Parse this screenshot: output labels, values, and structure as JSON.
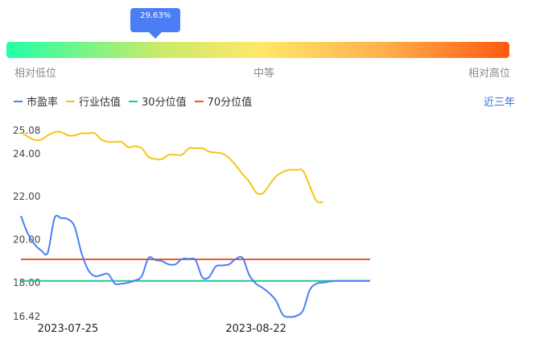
{
  "gauge": {
    "percentile": 29.63,
    "bubble_label": "29.63%",
    "labels": {
      "low": "相对低位",
      "mid": "中等",
      "high": "相对高位"
    },
    "colors": [
      "#22ffa8",
      "#c8ea6a",
      "#ffe86a",
      "#ffb04a",
      "#ff5a10"
    ]
  },
  "legend": [
    {
      "name": "市盈率",
      "color": "#4b7ef5"
    },
    {
      "name": "行业估值",
      "color": "#f5c518"
    },
    {
      "name": "30分位值",
      "color": "#1fc990"
    },
    {
      "name": "70分位值",
      "color": "#f2581f"
    }
  ],
  "range_link": "近三年",
  "chart_data": {
    "type": "line",
    "ylim": [
      16.42,
      25.08
    ],
    "y_ticks": [
      "25.08",
      "24.00",
      "22.00",
      "20.00",
      "18.00",
      "16.42"
    ],
    "y_tick_values": [
      25.08,
      24.0,
      22.0,
      20.0,
      18.0,
      16.42
    ],
    "x_range": [
      "2023-07-18",
      "2023-09-08"
    ],
    "x_ticks": [
      "2023-07-25",
      "2023-08-22"
    ],
    "series": [
      {
        "name": "市盈率",
        "color": "#4b7ef5",
        "x": [
          "2023-07-18",
          "2023-07-19",
          "2023-07-20",
          "2023-07-21",
          "2023-07-22",
          "2023-07-23",
          "2023-07-24",
          "2023-07-25",
          "2023-07-26",
          "2023-07-27",
          "2023-07-28",
          "2023-07-29",
          "2023-07-30",
          "2023-07-31",
          "2023-08-01",
          "2023-08-02",
          "2023-08-03",
          "2023-08-04",
          "2023-08-05",
          "2023-08-06",
          "2023-08-07",
          "2023-08-08",
          "2023-08-09",
          "2023-08-10",
          "2023-08-11",
          "2023-08-12",
          "2023-08-13",
          "2023-08-14",
          "2023-08-15",
          "2023-08-16",
          "2023-08-17",
          "2023-08-18",
          "2023-08-19",
          "2023-08-20",
          "2023-08-21",
          "2023-08-22",
          "2023-08-23",
          "2023-08-24",
          "2023-08-25",
          "2023-08-26",
          "2023-08-27",
          "2023-08-28",
          "2023-08-29",
          "2023-08-30",
          "2023-08-31",
          "2023-09-01",
          "2023-09-02",
          "2023-09-03",
          "2023-09-04",
          "2023-09-05",
          "2023-09-06",
          "2023-09-07",
          "2023-09-08"
        ],
        "values": [
          21.1,
          20.3,
          19.8,
          19.5,
          19.4,
          21.0,
          21.0,
          20.95,
          20.6,
          19.4,
          18.6,
          18.3,
          18.35,
          18.4,
          17.95,
          17.95,
          18.0,
          18.1,
          18.3,
          19.15,
          19.05,
          19.0,
          18.85,
          18.85,
          19.1,
          19.1,
          19.05,
          18.25,
          18.25,
          18.75,
          18.8,
          18.85,
          19.1,
          19.15,
          18.35,
          17.95,
          17.75,
          17.5,
          17.15,
          16.5,
          16.4,
          16.45,
          16.7,
          17.65,
          17.95,
          18.0,
          18.05,
          18.08,
          18.08,
          18.08,
          18.08,
          18.08,
          18.08
        ]
      },
      {
        "name": "行业估值",
        "color": "#f5c518",
        "x": [
          "2023-07-18",
          "2023-07-19",
          "2023-07-20",
          "2023-07-21",
          "2023-07-22",
          "2023-07-23",
          "2023-07-24",
          "2023-07-25",
          "2023-07-26",
          "2023-07-27",
          "2023-07-28",
          "2023-07-29",
          "2023-07-30",
          "2023-07-31",
          "2023-08-01",
          "2023-08-02",
          "2023-08-03",
          "2023-08-04",
          "2023-08-05",
          "2023-08-06",
          "2023-08-07",
          "2023-08-08",
          "2023-08-09",
          "2023-08-10",
          "2023-08-11",
          "2023-08-12",
          "2023-08-13",
          "2023-08-14",
          "2023-08-15",
          "2023-08-16",
          "2023-08-17",
          "2023-08-18",
          "2023-08-19",
          "2023-08-20",
          "2023-08-21",
          "2023-08-22",
          "2023-08-23",
          "2023-08-24",
          "2023-08-25",
          "2023-08-26",
          "2023-08-27",
          "2023-08-28",
          "2023-08-29",
          "2023-08-30",
          "2023-08-31",
          "2023-09-01"
        ],
        "values": [
          25.0,
          24.8,
          24.65,
          24.65,
          24.85,
          25.0,
          25.0,
          24.85,
          24.85,
          24.95,
          24.95,
          24.95,
          24.65,
          24.55,
          24.55,
          24.55,
          24.3,
          24.35,
          24.25,
          23.85,
          23.75,
          23.75,
          23.95,
          23.95,
          23.95,
          24.25,
          24.25,
          24.25,
          24.1,
          24.05,
          24.0,
          23.8,
          23.45,
          23.05,
          22.7,
          22.2,
          22.15,
          22.55,
          22.95,
          23.15,
          23.25,
          23.25,
          23.2,
          22.5,
          21.8,
          21.75
        ]
      },
      {
        "name": "30分位值",
        "color": "#1fc990",
        "x": [
          "2023-07-18",
          "2023-09-08"
        ],
        "values": [
          18.08,
          18.08
        ]
      },
      {
        "name": "70分位值",
        "color": "#f2581f",
        "x": [
          "2023-07-18",
          "2023-09-08"
        ],
        "values": [
          19.08,
          19.08
        ]
      }
    ]
  }
}
